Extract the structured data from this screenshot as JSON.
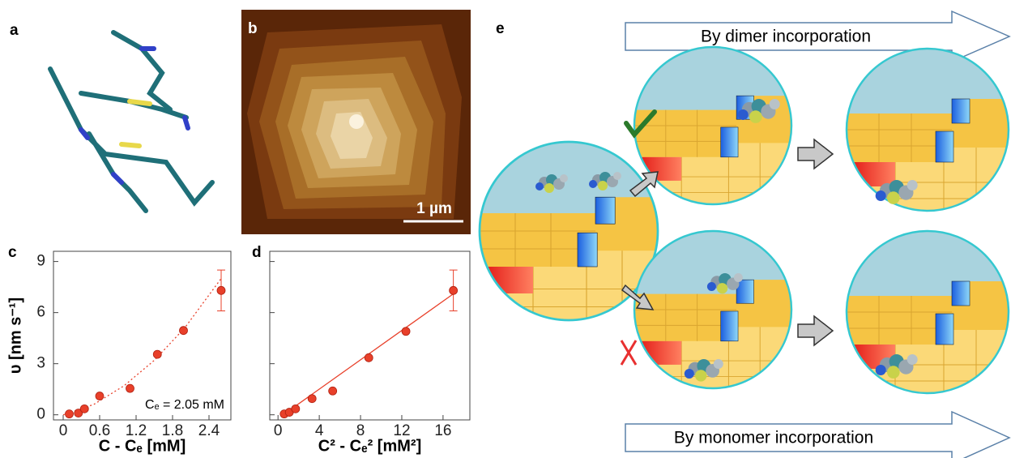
{
  "panels": {
    "a": "a",
    "b": "b",
    "e": "e",
    "scale_bar": "1 µm",
    "top_arrow": "By dimer incorporation",
    "bottom_arrow": "By monomer incorporation"
  },
  "chart_data": [
    {
      "type": "scatter",
      "label": "c",
      "xlabel": "C - Cₑ [mM]",
      "ylabel": "υ [nm s⁻¹]",
      "annotation": "Cₑ = 2.05 mM",
      "x": [
        0.1,
        0.25,
        0.35,
        0.6,
        1.1,
        1.55,
        1.98,
        2.6
      ],
      "values": [
        0.05,
        0.1,
        0.35,
        1.1,
        1.55,
        3.55,
        4.95,
        7.3
      ],
      "errors": [
        null,
        null,
        null,
        null,
        null,
        null,
        null,
        1.2
      ],
      "color": "#e8402a",
      "fit": {
        "x": [
          0,
          0.5,
          1,
          1.5,
          2,
          2.6
        ],
        "values": [
          0,
          0.6,
          1.7,
          3.2,
          5.1,
          8.0
        ],
        "style": "dotted"
      },
      "xlim": [
        -0.16,
        2.76
      ],
      "ylim": [
        -0.3,
        9.6
      ],
      "xticks": [
        0,
        0.6,
        1.2,
        1.8,
        2.4
      ],
      "yticks": [
        0,
        3,
        6,
        9
      ],
      "ytick_labels": true
    },
    {
      "type": "scatter",
      "label": "d",
      "xlabel": "C² - Cₑ² [mM²]",
      "x": [
        0.6,
        1.1,
        1.7,
        3.3,
        5.3,
        8.8,
        12.4,
        17.0
      ],
      "values": [
        0.05,
        0.15,
        0.35,
        0.95,
        1.4,
        3.35,
        4.9,
        7.3
      ],
      "errors": [
        null,
        null,
        null,
        null,
        null,
        null,
        null,
        1.2
      ],
      "color": "#e8402a",
      "fit": {
        "x": [
          0.5,
          17
        ],
        "values": [
          0,
          7.1
        ],
        "style": "solid"
      },
      "xlim": [
        -0.8,
        18.6
      ],
      "ylim": [
        -0.3,
        9.6
      ],
      "xticks": [
        0,
        4,
        8,
        12,
        16
      ],
      "yticks": [
        0,
        3,
        6,
        9
      ],
      "ytick_labels": false
    }
  ]
}
